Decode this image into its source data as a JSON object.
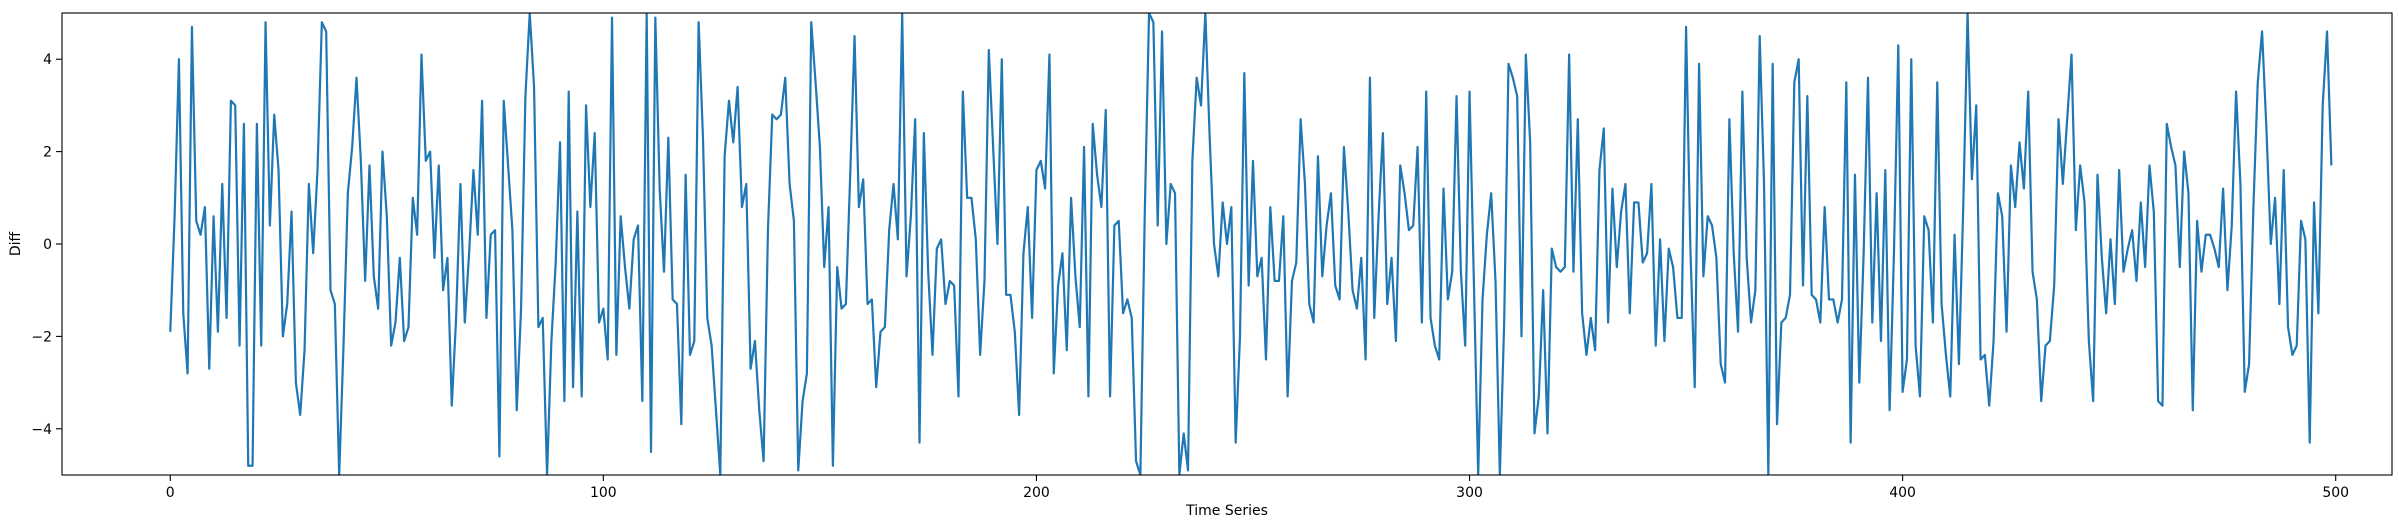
{
  "chart_data": {
    "type": "line",
    "title": "",
    "xlabel": "Time Series",
    "ylabel": "Diff",
    "xlim": [
      -25,
      513
    ],
    "ylim": [
      -5,
      5
    ],
    "xticks": [
      0,
      100,
      200,
      300,
      400,
      500
    ],
    "yticks": [
      -4,
      -2,
      0,
      2,
      4
    ],
    "xtick_labels": [
      "0",
      "100",
      "200",
      "300",
      "400",
      "500"
    ],
    "ytick_labels": [
      "−4",
      "−2",
      "0",
      "2",
      "4"
    ],
    "grid": false,
    "legend": "none",
    "series": [
      {
        "color": "#1f77b4",
        "x_start": 0,
        "x_step": 1,
        "values": [
          -1.9,
          0.6,
          4.0,
          -1.5,
          -2.8,
          4.7,
          0.5,
          0.2,
          0.8,
          -2.7,
          0.6,
          -1.9,
          1.3,
          -1.6,
          3.1,
          3.0,
          -2.2,
          2.6,
          -4.8,
          -4.8,
          2.6,
          -2.2,
          4.8,
          0.4,
          2.8,
          1.6,
          -2.0,
          -1.3,
          0.7,
          -3.0,
          -3.7,
          -2.3,
          1.3,
          -0.2,
          1.6,
          4.8,
          4.6,
          -1.0,
          -1.3,
          -5.0,
          -2.2,
          1.1,
          2.1,
          3.6,
          1.8,
          -0.8,
          1.7,
          -0.7,
          -1.4,
          2.0,
          0.6,
          -2.2,
          -1.7,
          -0.3,
          -2.1,
          -1.8,
          1.0,
          0.2,
          4.1,
          1.8,
          2.0,
          -0.3,
          1.7,
          -1.0,
          -0.3,
          -3.5,
          -1.6,
          1.3,
          -1.7,
          -0.2,
          1.6,
          0.2,
          3.1,
          -1.6,
          0.2,
          0.3,
          -4.6,
          3.1,
          1.7,
          0.3,
          -3.6,
          -1.4,
          3.2,
          5.0,
          3.4,
          -1.8,
          -1.6,
          -5.0,
          -2.1,
          -0.4,
          2.2,
          -3.4,
          3.3,
          -3.1,
          0.7,
          -3.3,
          3.0,
          0.8,
          2.4,
          -1.7,
          -1.4,
          -2.5,
          4.9,
          -2.4,
          0.6,
          -0.5,
          -1.4,
          0.1,
          0.4,
          -3.4,
          5.0,
          -4.5,
          4.9,
          1.2,
          -0.6,
          2.3,
          -1.2,
          -1.3,
          -3.9,
          1.5,
          -2.4,
          -2.1,
          4.8,
          2.3,
          -1.6,
          -2.2,
          -3.6,
          -5.0,
          1.9,
          3.1,
          2.2,
          3.4,
          0.8,
          1.3,
          -2.7,
          -2.1,
          -3.6,
          -4.7,
          0.3,
          2.8,
          2.7,
          2.8,
          3.6,
          1.3,
          0.5,
          -4.9,
          -3.4,
          -2.8,
          4.8,
          3.5,
          2.1,
          -0.5,
          0.8,
          -4.8,
          -0.5,
          -1.4,
          -1.3,
          1.5,
          4.5,
          0.8,
          1.4,
          -1.3,
          -1.2,
          -3.1,
          -1.9,
          -1.8,
          0.3,
          1.3,
          0.1,
          5.0,
          -0.7,
          0.6,
          2.7,
          -4.3,
          2.4,
          -0.6,
          -2.4,
          -0.1,
          0.1,
          -1.3,
          -0.8,
          -0.9,
          -3.3,
          3.3,
          1.0,
          1.0,
          0.1,
          -2.4,
          -0.8,
          4.2,
          2.1,
          0.0,
          4.0,
          -1.1,
          -1.1,
          -1.9,
          -3.7,
          -0.2,
          0.8,
          -1.6,
          1.6,
          1.8,
          1.2,
          4.1,
          -2.8,
          -0.9,
          -0.2,
          -2.3,
          1.0,
          -0.7,
          -1.8,
          2.1,
          -3.3,
          2.6,
          1.5,
          0.8,
          2.9,
          -3.3,
          0.4,
          0.5,
          -1.5,
          -1.2,
          -1.6,
          -4.7,
          -5.0,
          0.6,
          5.0,
          4.8,
          0.4,
          4.6,
          0.0,
          1.3,
          1.1,
          -5.0,
          -4.1,
          -4.9,
          1.8,
          3.6,
          3.0,
          5.0,
          2.3,
          0.0,
          -0.7,
          0.9,
          0.0,
          0.8,
          -4.3,
          -2.0,
          3.7,
          -0.9,
          1.8,
          -0.7,
          -0.3,
          -2.5,
          0.8,
          -0.8,
          -0.8,
          0.6,
          -3.3,
          -0.8,
          -0.4,
          2.7,
          1.3,
          -1.3,
          -1.7,
          1.9,
          -0.7,
          0.4,
          1.1,
          -0.9,
          -1.2,
          2.1,
          0.7,
          -1.0,
          -1.4,
          -0.3,
          -2.5,
          3.6,
          -1.6,
          0.6,
          2.4,
          -1.3,
          -0.3,
          -2.1,
          1.7,
          1.1,
          0.3,
          0.4,
          2.1,
          -1.7,
          3.3,
          -1.6,
          -2.2,
          -2.5,
          1.2,
          -1.2,
          -0.6,
          3.2,
          -0.6,
          -2.2,
          3.3,
          -0.8,
          -5.0,
          -1.2,
          0.2,
          1.1,
          -0.8,
          -5.0,
          -1.7,
          3.9,
          3.6,
          3.2,
          -2.0,
          4.1,
          2.2,
          -4.1,
          -3.3,
          -1.0,
          -4.1,
          -0.1,
          -0.5,
          -0.6,
          -0.5,
          4.1,
          -0.6,
          2.7,
          -1.5,
          -2.4,
          -1.6,
          -2.3,
          1.6,
          2.5,
          -1.7,
          1.2,
          -0.5,
          0.7,
          1.3,
          -1.5,
          0.9,
          0.9,
          -0.4,
          -0.2,
          1.3,
          -2.2,
          0.1,
          -2.1,
          -0.1,
          -0.5,
          -1.6,
          -1.6,
          4.7,
          -0.1,
          -3.1,
          3.9,
          -0.7,
          0.6,
          0.4,
          -0.3,
          -2.6,
          -3.0,
          2.7,
          -0.2,
          -1.9,
          3.3,
          -0.3,
          -1.7,
          -1.0,
          4.5,
          1.3,
          -5.0,
          3.9,
          -3.9,
          -1.7,
          -1.6,
          -1.1,
          3.5,
          4.0,
          -0.9,
          3.2,
          -1.1,
          -1.2,
          -1.7,
          0.8,
          -1.2,
          -1.2,
          -1.7,
          -1.2,
          3.5,
          -4.3,
          1.5,
          -3.0,
          -0.2,
          3.6,
          -1.7,
          1.1,
          -2.1,
          1.6,
          -3.6,
          -0.2,
          4.3,
          -3.2,
          -2.5,
          4.0,
          -2.2,
          -3.3,
          0.6,
          0.3,
          -1.7,
          3.5,
          -1.3,
          -2.4,
          -3.3,
          0.2,
          -2.6,
          0.8,
          5.0,
          1.4,
          3.0,
          -2.5,
          -2.4,
          -3.5,
          -2.1,
          1.1,
          0.6,
          -1.9,
          1.7,
          0.8,
          2.2,
          1.2,
          3.3,
          -0.6,
          -1.2,
          -3.4,
          -2.2,
          -2.1,
          -0.9,
          2.7,
          1.3,
          2.7,
          4.1,
          0.3,
          1.7,
          0.9,
          -2.1,
          -3.4,
          1.5,
          -0.3,
          -1.5,
          0.1,
          -1.3,
          1.6,
          -0.6,
          -0.1,
          0.3,
          -0.8,
          0.9,
          -0.5,
          1.7,
          0.7,
          -3.4,
          -3.5,
          2.6,
          2.1,
          1.7,
          -0.5,
          2.0,
          1.1,
          -3.6,
          0.5,
          -0.6,
          0.2,
          0.2,
          -0.1,
          -0.5,
          1.2,
          -1.0,
          0.4,
          3.3,
          1.3,
          -3.2,
          -2.6,
          0.8,
          3.5,
          4.6,
          2.5,
          0.0,
          1.0,
          -1.3,
          1.6,
          -1.8,
          -2.4,
          -2.2,
          0.5,
          0.1,
          -4.3,
          0.9,
          -1.5,
          3.0,
          4.6,
          1.7
        ]
      }
    ]
  }
}
